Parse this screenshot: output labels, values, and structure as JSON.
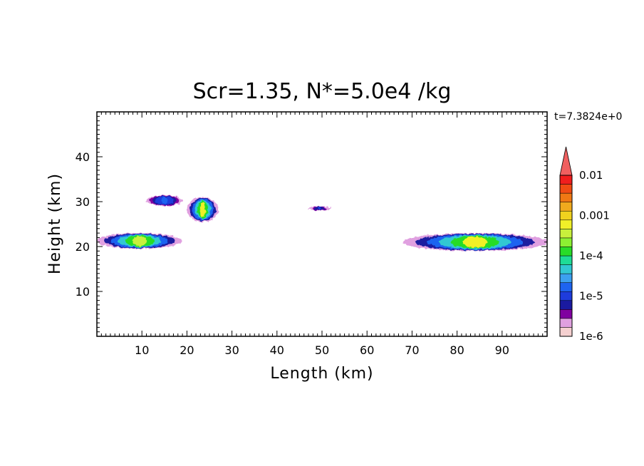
{
  "chart_data": {
    "type": "heatmap",
    "title": "Scr=1.35, N*=5.0e4 /kg",
    "time_label": "t=7.3824e+0",
    "xlabel": "Length  (km)",
    "ylabel": "Height  (km)",
    "xlim": [
      0,
      100
    ],
    "ylim": [
      0,
      50
    ],
    "xticks": [
      10,
      20,
      30,
      40,
      50,
      60,
      70,
      80,
      90
    ],
    "yticks": [
      10,
      20,
      30,
      40
    ],
    "colorbar": {
      "scale": "log",
      "range": [
        1e-06,
        0.01
      ],
      "extend": "max",
      "tick_values": [
        1e-06,
        1e-05,
        0.0001,
        0.001,
        0.01
      ],
      "tick_labels": [
        "1e-6",
        "1e-5",
        "1e-4",
        "0.001",
        "0.01"
      ],
      "colors": [
        "#f5d0d0",
        "#e0a0e0",
        "#8000a0",
        "#1a1aa0",
        "#1e3cdc",
        "#1e64f0",
        "#3ca0f0",
        "#32c8d2",
        "#1edc96",
        "#28dc28",
        "#8cf032",
        "#c8f03c",
        "#f0f028",
        "#f0d21e",
        "#f0aa1e",
        "#f07814",
        "#f04b14",
        "#f01e1e"
      ],
      "extend_color": "#f06060"
    },
    "regions": [
      {
        "name": "lower-left-layer",
        "x_range": [
          0,
          19
        ],
        "y_range": [
          19.5,
          23
        ],
        "peak": 0.0003
      },
      {
        "name": "upper-left-patch",
        "x_range": [
          11,
          19
        ],
        "y_range": [
          29,
          31.5
        ],
        "peak": 2e-05
      },
      {
        "name": "center-left-column",
        "x_range": [
          20,
          27
        ],
        "y_range": [
          25.5,
          31
        ],
        "peak": 0.0005
      },
      {
        "name": "center-small-patch",
        "x_range": [
          47,
          52
        ],
        "y_range": [
          28,
          29
        ],
        "peak": 1e-05
      },
      {
        "name": "right-layer",
        "x_range": [
          68,
          100
        ],
        "y_range": [
          19,
          23
        ],
        "peak": 0.0005
      }
    ]
  }
}
